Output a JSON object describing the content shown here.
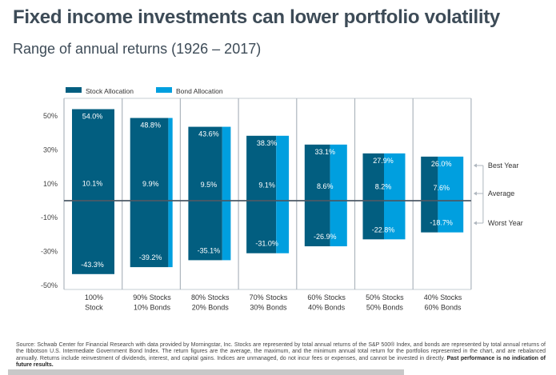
{
  "header": {
    "title": "Fixed income investments can lower portfolio volatility",
    "subtitle": "Range of annual returns (1926 – 2017)"
  },
  "chart_data": {
    "type": "bar",
    "title": "Range of annual returns (1926 – 2017)",
    "xlabel": "",
    "ylabel": "",
    "ylim": [
      -50,
      50
    ],
    "yticks": [
      50,
      30,
      10,
      -10,
      -30,
      -50
    ],
    "ytick_labels": [
      "50%",
      "30%",
      "10%",
      "-10%",
      "-30%",
      "-50%"
    ],
    "grid": false,
    "legend_position": "top-left",
    "legend": [
      {
        "name": "Stock Allocation",
        "color": "#025e80"
      },
      {
        "name": "Bond Allocation",
        "color": "#009fdf"
      }
    ],
    "categories": [
      [
        "100%",
        "Stock"
      ],
      [
        "90% Stocks",
        "10% Bonds"
      ],
      [
        "80% Stocks",
        "20% Bonds"
      ],
      [
        "70% Stocks",
        "30% Bonds"
      ],
      [
        "60% Stocks",
        "40% Bonds"
      ],
      [
        "50% Stocks",
        "50% Bonds"
      ],
      [
        "40% Stocks",
        "60% Bonds"
      ]
    ],
    "stock_share": [
      1.0,
      0.9,
      0.8,
      0.7,
      0.6,
      0.5,
      0.4
    ],
    "series": [
      {
        "name": "Best Year",
        "values": [
          54.0,
          48.8,
          43.6,
          38.3,
          33.1,
          27.9,
          26.0
        ]
      },
      {
        "name": "Average",
        "values": [
          10.1,
          9.9,
          9.5,
          9.1,
          8.6,
          8.2,
          7.6
        ]
      },
      {
        "name": "Worst Year",
        "values": [
          -43.3,
          -39.2,
          -35.1,
          -31.0,
          -26.9,
          -22.8,
          -18.7
        ]
      }
    ],
    "data_labels": {
      "best": [
        "54.0%",
        "48.8%",
        "43.6%",
        "38.3%",
        "33.1%",
        "27.9%",
        "26.0%"
      ],
      "average": [
        "10.1%",
        "9.9%",
        "9.5%",
        "9.1%",
        "8.6%",
        "8.2%",
        "7.6%"
      ],
      "worst": [
        "-43.3%",
        "-39.2%",
        "-35.1%",
        "-31.0%",
        "-26.9%",
        "-22.8%",
        "-18.7%"
      ]
    },
    "annotations": [
      "Best Year",
      "Average",
      "Worst Year"
    ]
  },
  "footnote": {
    "text": "Source: Schwab Center for Financial Research with data provided by Morningstar, Inc.  Stocks are represented by total annual returns of the S&P 500® Index, and bonds are represented by total annual returns of the Ibbotson U.S. Intermediate Government Bond Index.  The return figures are the average, the maximum, and the minimum annual total return for the portfolios represented in the chart, and are rebalanced annually.  Returns include reinvestment of dividends, interest, and capital gains.  Indices are unmanaged, do not incur fees or expenses, and cannot be invested in directly. ",
    "bold": "Past performance is no indication of future results."
  }
}
